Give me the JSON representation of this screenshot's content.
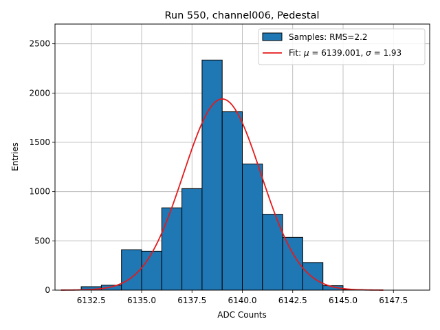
{
  "chart_data": {
    "type": "bar",
    "title": "Run 550, channel006, Pedestal",
    "xlabel": "ADC Counts",
    "ylabel": "Entries",
    "xlim": [
      6130.7,
      6149.3
    ],
    "ylim": [
      0,
      2700
    ],
    "xticks": [
      6132.5,
      6135.0,
      6137.5,
      6140.0,
      6142.5,
      6145.0,
      6147.5
    ],
    "xtick_labels": [
      "6132.5",
      "6135.0",
      "6137.5",
      "6140.0",
      "6142.5",
      "6145.0",
      "6147.5"
    ],
    "yticks": [
      0,
      500,
      1000,
      1500,
      2000,
      2500
    ],
    "ytick_labels": [
      "0",
      "500",
      "1000",
      "1500",
      "2000",
      "2500"
    ],
    "grid": true,
    "legend_position": "top-right",
    "histogram": {
      "name": "Samples: RMS=2.2",
      "color": "#1f77b4",
      "edgecolor": "#000000",
      "bin_edges": [
        6132.0,
        6133.0,
        6134.0,
        6135.0,
        6136.0,
        6137.0,
        6138.0,
        6139.0,
        6140.0,
        6141.0,
        6142.0,
        6143.0,
        6144.0,
        6145.0,
        6146.0,
        6147.0,
        6148.0
      ],
      "counts": [
        35,
        50,
        410,
        395,
        835,
        1030,
        2335,
        1810,
        1280,
        770,
        535,
        280,
        45,
        5,
        0,
        0
      ]
    },
    "fit": {
      "legend_prefix": "Fit: ",
      "mu_symbol": "μ",
      "sigma_symbol": "σ",
      "mu_text": " = 6139.001, ",
      "sigma_text": " = 1.93",
      "color": "#e41a1c",
      "mu": 6139.001,
      "sigma": 1.93,
      "amplitude": 1940,
      "x_range": [
        6131.0,
        6147.0
      ]
    }
  }
}
